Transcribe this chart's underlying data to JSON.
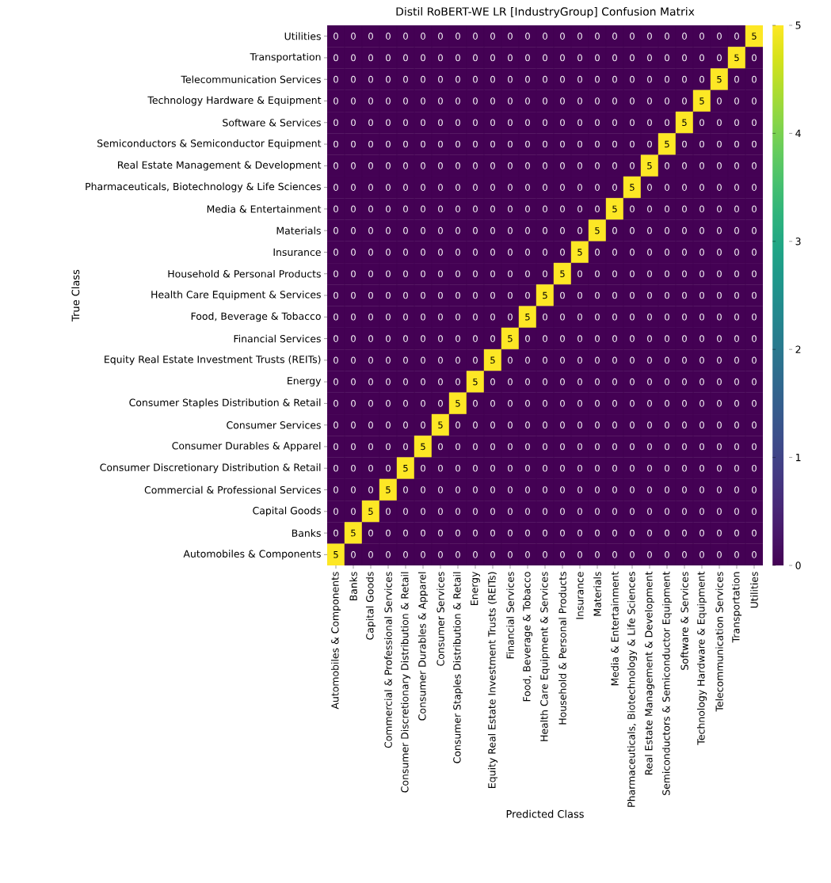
{
  "chart_data": {
    "type": "heatmap",
    "title": "Distil RoBERT-WE LR [IndustryGroup] Confusion Matrix",
    "xlabel": "Predicted Class",
    "ylabel": "True Class",
    "categories": [
      "Automobiles & Components",
      "Banks",
      "Capital Goods",
      "Commercial & Professional Services",
      "Consumer Discretionary Distribution & Retail",
      "Consumer Durables & Apparel",
      "Consumer Services",
      "Consumer Staples Distribution & Retail",
      "Energy",
      "Equity Real Estate Investment Trusts (REITs)",
      "Financial Services",
      "Food, Beverage & Tobacco",
      "Health Care Equipment & Services",
      "Household & Personal Products",
      "Insurance",
      "Materials",
      "Media & Entertainment",
      "Pharmaceuticals, Biotechnology & Life Sciences",
      "Real Estate Management & Development",
      "Semiconductors & Semiconductor Equipment",
      "Software & Services",
      "Technology Hardware & Equipment",
      "Telecommunication Services",
      "Transportation",
      "Utilities"
    ],
    "y_categories": [
      "Utilities",
      "Transportation",
      "Telecommunication Services",
      "Technology Hardware & Equipment",
      "Software & Services",
      "Semiconductors & Semiconductor Equipment",
      "Real Estate Management & Development",
      "Pharmaceuticals, Biotechnology & Life Sciences",
      "Media & Entertainment",
      "Materials",
      "Insurance",
      "Household & Personal Products",
      "Health Care Equipment & Services",
      "Food, Beverage & Tobacco",
      "Financial Services",
      "Equity Real Estate Investment Trusts (REITs)",
      "Energy",
      "Consumer Staples Distribution & Retail",
      "Consumer Services",
      "Consumer Durables & Apparel",
      "Consumer Discretionary Distribution & Retail",
      "Commercial & Professional Services",
      "Capital Goods",
      "Banks",
      "Automobiles & Components"
    ],
    "cells": [
      [
        0,
        0,
        0,
        0,
        0,
        0,
        0,
        0,
        0,
        0,
        0,
        0,
        0,
        0,
        0,
        0,
        0,
        0,
        0,
        0,
        0,
        0,
        0,
        0,
        5
      ],
      [
        0,
        0,
        0,
        0,
        0,
        0,
        0,
        0,
        0,
        0,
        0,
        0,
        0,
        0,
        0,
        0,
        0,
        0,
        0,
        0,
        0,
        0,
        0,
        5,
        0
      ],
      [
        0,
        0,
        0,
        0,
        0,
        0,
        0,
        0,
        0,
        0,
        0,
        0,
        0,
        0,
        0,
        0,
        0,
        0,
        0,
        0,
        0,
        0,
        5,
        0,
        0
      ],
      [
        0,
        0,
        0,
        0,
        0,
        0,
        0,
        0,
        0,
        0,
        0,
        0,
        0,
        0,
        0,
        0,
        0,
        0,
        0,
        0,
        0,
        5,
        0,
        0,
        0
      ],
      [
        0,
        0,
        0,
        0,
        0,
        0,
        0,
        0,
        0,
        0,
        0,
        0,
        0,
        0,
        0,
        0,
        0,
        0,
        0,
        0,
        5,
        0,
        0,
        0,
        0
      ],
      [
        0,
        0,
        0,
        0,
        0,
        0,
        0,
        0,
        0,
        0,
        0,
        0,
        0,
        0,
        0,
        0,
        0,
        0,
        0,
        5,
        0,
        0,
        0,
        0,
        0
      ],
      [
        0,
        0,
        0,
        0,
        0,
        0,
        0,
        0,
        0,
        0,
        0,
        0,
        0,
        0,
        0,
        0,
        0,
        0,
        5,
        0,
        0,
        0,
        0,
        0,
        0
      ],
      [
        0,
        0,
        0,
        0,
        0,
        0,
        0,
        0,
        0,
        0,
        0,
        0,
        0,
        0,
        0,
        0,
        0,
        5,
        0,
        0,
        0,
        0,
        0,
        0,
        0
      ],
      [
        0,
        0,
        0,
        0,
        0,
        0,
        0,
        0,
        0,
        0,
        0,
        0,
        0,
        0,
        0,
        0,
        5,
        0,
        0,
        0,
        0,
        0,
        0,
        0,
        0
      ],
      [
        0,
        0,
        0,
        0,
        0,
        0,
        0,
        0,
        0,
        0,
        0,
        0,
        0,
        0,
        0,
        5,
        0,
        0,
        0,
        0,
        0,
        0,
        0,
        0,
        0
      ],
      [
        0,
        0,
        0,
        0,
        0,
        0,
        0,
        0,
        0,
        0,
        0,
        0,
        0,
        0,
        5,
        0,
        0,
        0,
        0,
        0,
        0,
        0,
        0,
        0,
        0
      ],
      [
        0,
        0,
        0,
        0,
        0,
        0,
        0,
        0,
        0,
        0,
        0,
        0,
        0,
        5,
        0,
        0,
        0,
        0,
        0,
        0,
        0,
        0,
        0,
        0,
        0
      ],
      [
        0,
        0,
        0,
        0,
        0,
        0,
        0,
        0,
        0,
        0,
        0,
        0,
        5,
        0,
        0,
        0,
        0,
        0,
        0,
        0,
        0,
        0,
        0,
        0,
        0
      ],
      [
        0,
        0,
        0,
        0,
        0,
        0,
        0,
        0,
        0,
        0,
        0,
        5,
        0,
        0,
        0,
        0,
        0,
        0,
        0,
        0,
        0,
        0,
        0,
        0,
        0
      ],
      [
        0,
        0,
        0,
        0,
        0,
        0,
        0,
        0,
        0,
        0,
        5,
        0,
        0,
        0,
        0,
        0,
        0,
        0,
        0,
        0,
        0,
        0,
        0,
        0,
        0
      ],
      [
        0,
        0,
        0,
        0,
        0,
        0,
        0,
        0,
        0,
        5,
        0,
        0,
        0,
        0,
        0,
        0,
        0,
        0,
        0,
        0,
        0,
        0,
        0,
        0,
        0
      ],
      [
        0,
        0,
        0,
        0,
        0,
        0,
        0,
        0,
        5,
        0,
        0,
        0,
        0,
        0,
        0,
        0,
        0,
        0,
        0,
        0,
        0,
        0,
        0,
        0,
        0
      ],
      [
        0,
        0,
        0,
        0,
        0,
        0,
        0,
        5,
        0,
        0,
        0,
        0,
        0,
        0,
        0,
        0,
        0,
        0,
        0,
        0,
        0,
        0,
        0,
        0,
        0
      ],
      [
        0,
        0,
        0,
        0,
        0,
        0,
        5,
        0,
        0,
        0,
        0,
        0,
        0,
        0,
        0,
        0,
        0,
        0,
        0,
        0,
        0,
        0,
        0,
        0,
        0
      ],
      [
        0,
        0,
        0,
        0,
        0,
        5,
        0,
        0,
        0,
        0,
        0,
        0,
        0,
        0,
        0,
        0,
        0,
        0,
        0,
        0,
        0,
        0,
        0,
        0,
        0
      ],
      [
        0,
        0,
        0,
        0,
        5,
        0,
        0,
        0,
        0,
        0,
        0,
        0,
        0,
        0,
        0,
        0,
        0,
        0,
        0,
        0,
        0,
        0,
        0,
        0,
        0
      ],
      [
        0,
        0,
        0,
        5,
        0,
        0,
        0,
        0,
        0,
        0,
        0,
        0,
        0,
        0,
        0,
        0,
        0,
        0,
        0,
        0,
        0,
        0,
        0,
        0,
        0
      ],
      [
        0,
        0,
        5,
        0,
        0,
        0,
        0,
        0,
        0,
        0,
        0,
        0,
        0,
        0,
        0,
        0,
        0,
        0,
        0,
        0,
        0,
        0,
        0,
        0,
        0
      ],
      [
        0,
        5,
        0,
        0,
        0,
        0,
        0,
        0,
        0,
        0,
        0,
        0,
        0,
        0,
        0,
        0,
        0,
        0,
        0,
        0,
        0,
        0,
        0,
        0,
        0
      ],
      [
        5,
        0,
        0,
        0,
        0,
        0,
        0,
        0,
        0,
        0,
        0,
        0,
        0,
        0,
        0,
        0,
        0,
        0,
        0,
        0,
        0,
        0,
        0,
        0,
        0
      ]
    ],
    "clim": [
      0,
      5
    ],
    "cticks": [
      0,
      1,
      2,
      3,
      4,
      5
    ],
    "data_labels": true
  }
}
